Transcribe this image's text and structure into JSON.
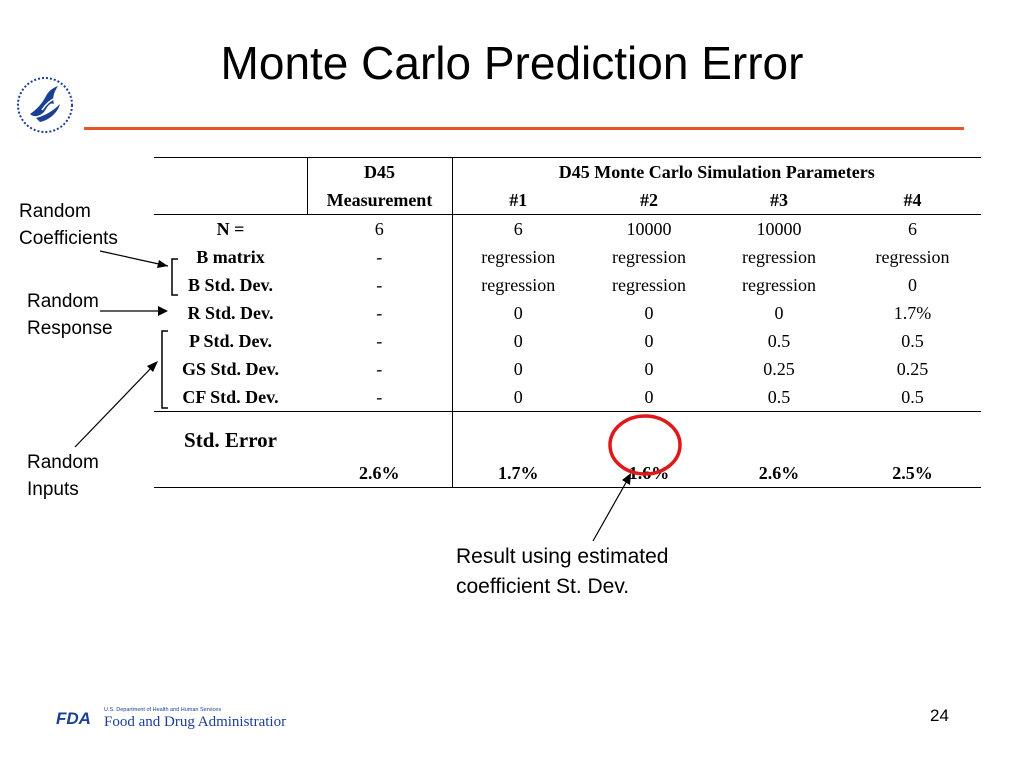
{
  "slide": {
    "title": "Monte Carlo Prediction Error",
    "page_number": "24"
  },
  "colors": {
    "accent_rule": "#e8532a",
    "highlight_circle": "#e01818",
    "logo_blue": "#1b3f94"
  },
  "side_labels": {
    "random_coefficients": [
      "Random",
      "Coefficients"
    ],
    "random_response": [
      "Random",
      "Response"
    ],
    "random_inputs": [
      "Random",
      "Inputs"
    ]
  },
  "table": {
    "header": {
      "measurement_line1": "D45",
      "measurement_line2": "Measurement",
      "sim_group": "D45 Monte Carlo Simulation Parameters",
      "sim_cols": [
        "#1",
        "#2",
        "#3",
        "#4"
      ]
    },
    "rows": [
      {
        "label": "N =",
        "values": [
          "6",
          "6",
          "10000",
          "10000",
          "6"
        ]
      },
      {
        "label": "B matrix",
        "values": [
          "-",
          "regression",
          "regression",
          "regression",
          "regression"
        ]
      },
      {
        "label": "B Std. Dev.",
        "values": [
          "-",
          "regression",
          "regression",
          "regression",
          "0"
        ]
      },
      {
        "label": "R Std. Dev.",
        "values": [
          "-",
          "0",
          "0",
          "0",
          "1.7%"
        ]
      },
      {
        "label": "P Std. Dev.",
        "values": [
          "-",
          "0",
          "0",
          "0.5",
          "0.5"
        ]
      },
      {
        "label": "GS Std. Dev.",
        "values": [
          "-",
          "0",
          "0",
          "0.25",
          "0.25"
        ]
      },
      {
        "label": "CF Std. Dev.",
        "values": [
          "-",
          "0",
          "0",
          "0.5",
          "0.5"
        ]
      }
    ],
    "error_row": {
      "label": "Std. Error",
      "values": [
        "2.6%",
        "1.7%",
        "1.6%",
        "2.6%",
        "2.5%"
      ]
    }
  },
  "annotation": {
    "lines": [
      "Result using estimated",
      "coefficient St. Dev."
    ]
  },
  "footer": {
    "fda_small": "U.S. Department of Health and Human Services",
    "fda_name": "Food and Drug Administration",
    "fda_mark": "FDA"
  }
}
